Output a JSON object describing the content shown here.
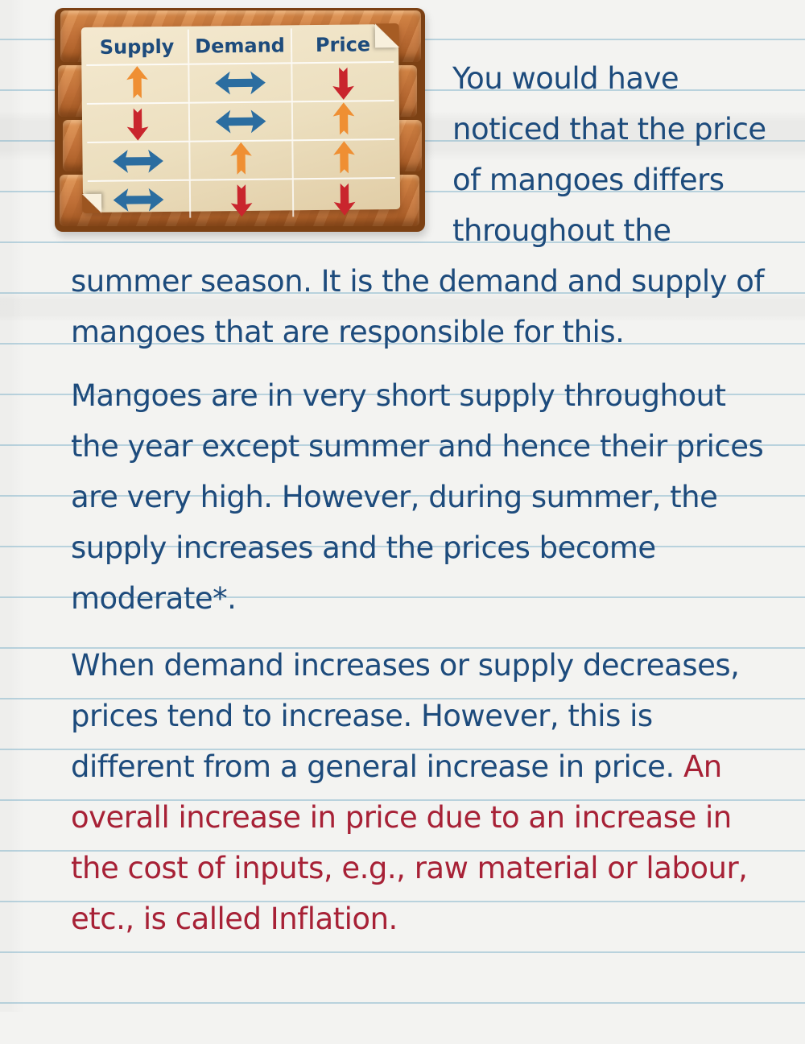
{
  "page": {
    "background_color": "#f3f3f1",
    "ruled_line_color": "#9bc0d2"
  },
  "board": {
    "wood_color": "#c8763c",
    "wood_dark_color": "#7c4114",
    "paper_color": "#eee1c3",
    "table": {
      "headers": [
        {
          "label": "Supply"
        },
        {
          "label": "Demand"
        },
        {
          "label": "Price"
        }
      ],
      "rows": [
        {
          "supply": "up",
          "demand": "both",
          "price": "down"
        },
        {
          "supply": "down",
          "demand": "both",
          "price": "up"
        },
        {
          "supply": "both",
          "demand": "up",
          "price": "up"
        },
        {
          "supply": "both",
          "demand": "down",
          "price": "down"
        }
      ],
      "arrow_colors": {
        "up": "#ef8f33",
        "down": "#c9252d",
        "both": "#2b6da0"
      },
      "header_text_color": "#1d4b7c"
    }
  },
  "text": {
    "blue_color": "#1d4b7c",
    "red_color": "#a72136",
    "paragraph1": "You would have noticed that the price of mangoes differs throughout the summer season. It is the demand and supply of mangoes that are responsible for this.",
    "paragraph2": "Mangoes are in very short supply throughout the year except summer and hence their prices are very high. However, during summer, the supply increases and the prices become moderate*.",
    "paragraph3_blue": "When demand increases or supply decreases, prices tend to increase. However, this is different from a general increase in price. ",
    "paragraph3_red": "An overall increase in price due to an increase in the cost of inputs, e.g., raw material or labour, etc., is called Inflation."
  }
}
